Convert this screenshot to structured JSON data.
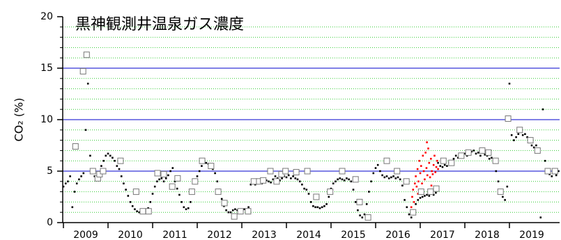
{
  "chart_data": {
    "type": "scatter",
    "title": "黒神観測井温泉ガス濃度",
    "y_label": "CO₂ (%)",
    "xlim": [
      2008.984,
      2020.125
    ],
    "xticks": [
      2009,
      2010,
      2011,
      2012,
      2013,
      2014,
      2015,
      2016,
      2017,
      2018,
      2019
    ],
    "ylim": [
      0,
      20
    ],
    "yticks": [
      0,
      5,
      10,
      15,
      20
    ],
    "grid": true,
    "grid_color": "#0000cc",
    "minor_yticks": [
      1,
      2,
      3,
      4,
      6,
      7,
      8,
      9,
      11,
      12,
      13,
      14,
      16,
      17,
      18,
      19
    ],
    "minor_grid_color": "#33cc33",
    "series": [
      {
        "color": "#000000",
        "marker": "dot",
        "x": [
          2009.0,
          2009.05,
          2009.1,
          2009.15,
          2009.2,
          2009.25,
          2009.3,
          2009.35,
          2009.4,
          2009.45,
          2009.5,
          2009.55,
          2009.6,
          2009.65,
          2009.7,
          2009.75,
          2009.8,
          2009.85,
          2009.9,
          2009.95,
          2010.0,
          2010.05,
          2010.1,
          2010.15,
          2010.2,
          2010.25,
          2010.3,
          2010.35,
          2010.4,
          2010.45,
          2010.5,
          2010.55,
          2010.6,
          2010.65,
          2010.7,
          2010.75,
          2010.8,
          2010.85,
          2010.9,
          2010.95,
          2011.0,
          2011.05,
          2011.1,
          2011.15,
          2011.2,
          2011.25,
          2011.3,
          2011.35,
          2011.4,
          2011.45,
          2011.5,
          2011.55,
          2011.6,
          2011.65,
          2011.7,
          2011.75,
          2011.8,
          2011.85,
          2011.9,
          2011.95,
          2012.0,
          2012.05,
          2012.1,
          2012.15,
          2012.2,
          2012.25,
          2012.3,
          2012.35,
          2012.4,
          2012.45,
          2012.5,
          2012.55,
          2012.6,
          2012.65,
          2012.7,
          2012.75,
          2012.8,
          2012.85,
          2012.9,
          2012.95,
          2013.0,
          2013.05,
          2013.1,
          2013.15,
          2013.2,
          2013.25,
          2013.3,
          2013.35,
          2013.4,
          2013.45,
          2013.5,
          2013.55,
          2013.6,
          2013.65,
          2013.7,
          2013.75,
          2013.8,
          2013.85,
          2013.9,
          2013.95,
          2014.0,
          2014.05,
          2014.1,
          2014.15,
          2014.2,
          2014.25,
          2014.3,
          2014.35,
          2014.4,
          2014.45,
          2014.5,
          2014.55,
          2014.6,
          2014.65,
          2014.7,
          2014.75,
          2014.8,
          2014.85,
          2014.9,
          2014.95,
          2015.0,
          2015.05,
          2015.1,
          2015.15,
          2015.2,
          2015.25,
          2015.3,
          2015.35,
          2015.4,
          2015.45,
          2015.5,
          2015.55,
          2015.6,
          2015.65,
          2015.7,
          2015.75,
          2015.8,
          2015.85,
          2015.9,
          2015.95,
          2016.0,
          2016.05,
          2016.1,
          2016.15,
          2016.2,
          2016.25,
          2016.3,
          2016.35,
          2016.4,
          2016.45,
          2016.5,
          2016.55,
          2016.6,
          2016.65,
          2016.7,
          2016.75,
          2016.8,
          2016.85,
          2016.9,
          2016.95,
          2017.0,
          2017.05,
          2017.1,
          2017.15,
          2017.2,
          2017.25,
          2017.3,
          2017.35,
          2017.4,
          2017.45,
          2017.5,
          2017.55,
          2017.6,
          2017.65,
          2017.7,
          2017.75,
          2017.8,
          2017.85,
          2017.9,
          2017.95,
          2018.0,
          2018.05,
          2018.1,
          2018.15,
          2018.2,
          2018.25,
          2018.3,
          2018.35,
          2018.4,
          2018.45,
          2018.5,
          2018.55,
          2018.6,
          2018.65,
          2018.7,
          2018.75,
          2018.8,
          2018.85,
          2018.9,
          2018.95,
          2019.0,
          2019.05,
          2019.1,
          2019.15,
          2019.2,
          2019.25,
          2019.3,
          2019.35,
          2019.4,
          2019.45,
          2019.5,
          2019.55,
          2019.6,
          2019.65,
          2019.7,
          2019.75,
          2019.8,
          2019.85,
          2019.9,
          2019.95,
          2020.0,
          2020.05,
          2020.1
        ],
        "values": [
          3.5,
          3.8,
          4.0,
          4.5,
          1.5,
          3.0,
          3.8,
          4.2,
          4.5,
          4.8,
          9.0,
          13.5,
          6.5,
          5.0,
          4.5,
          4.3,
          4.8,
          5.5,
          6.0,
          6.5,
          6.7,
          6.5,
          6.3,
          6.0,
          5.5,
          5.2,
          4.5,
          3.8,
          3.2,
          2.6,
          2.0,
          1.6,
          1.3,
          1.1,
          1.0,
          1.0,
          1.0,
          1.1,
          1.4,
          2.0,
          2.8,
          3.5,
          4.0,
          4.2,
          4.3,
          4.0,
          4.3,
          4.6,
          5.0,
          5.3,
          4.0,
          3.3,
          2.7,
          2.0,
          1.5,
          1.3,
          1.4,
          2.0,
          3.0,
          3.8,
          4.5,
          5.0,
          5.5,
          5.8,
          5.8,
          5.7,
          5.5,
          5.2,
          4.8,
          4.0,
          3.2,
          2.3,
          1.6,
          1.2,
          1.0,
          1.0,
          1.2,
          1.3,
          1.2,
          1.0,
          1.2,
          1.3,
          1.0,
          1.5,
          3.7,
          3.8,
          3.7,
          3.8,
          3.9,
          3.8,
          4.0,
          4.1,
          4.0,
          3.9,
          4.2,
          4.5,
          4.3,
          4.1,
          4.3,
          4.5,
          4.4,
          4.6,
          4.3,
          4.5,
          4.3,
          4.2,
          4.0,
          3.7,
          3.3,
          3.2,
          2.8,
          2.0,
          1.6,
          1.5,
          1.5,
          1.4,
          1.5,
          1.6,
          1.8,
          2.5,
          3.3,
          3.8,
          4.0,
          4.2,
          4.3,
          4.2,
          4.1,
          4.3,
          4.2,
          4.0,
          3.2,
          2.0,
          1.2,
          0.7,
          0.5,
          0.8,
          1.8,
          3.0,
          4.0,
          4.8,
          5.3,
          5.6,
          5.0,
          4.6,
          4.4,
          4.5,
          4.3,
          4.4,
          4.5,
          4.3,
          4.4,
          4.2,
          3.6,
          2.2,
          1.5,
          0.8,
          0.5,
          1.2,
          1.8,
          2.2,
          2.4,
          2.5,
          2.6,
          2.7,
          2.6,
          2.8,
          2.7,
          2.9,
          5.8,
          5.5,
          5.4,
          5.6,
          5.5,
          5.8,
          6.0,
          6.2,
          6.5,
          6.3,
          6.6,
          6.4,
          6.7,
          6.5,
          6.8,
          6.9,
          7.0,
          6.7,
          6.8,
          6.5,
          6.8,
          6.6,
          6.5,
          6.2,
          6.3,
          5.8,
          5.0,
          4.0,
          3.0,
          2.5,
          2.2,
          3.5,
          13.5,
          8.5,
          8.0,
          8.3,
          8.6,
          8.8,
          8.5,
          8.6,
          8.3,
          8.0,
          7.5,
          7.3,
          7.5,
          7.0,
          0.5,
          11.0,
          6.0,
          5.0,
          4.7,
          4.5,
          4.8,
          4.6,
          5.0
        ]
      },
      {
        "color": "#ff0000",
        "marker": "dot",
        "x": [
          2016.8,
          2016.82,
          2016.84,
          2016.85,
          2016.86,
          2016.88,
          2016.9,
          2016.92,
          2016.94,
          2016.95,
          2016.96,
          2016.98,
          2017.0,
          2017.02,
          2017.04,
          2017.05,
          2017.06,
          2017.08,
          2017.1,
          2017.12,
          2017.14,
          2017.15,
          2017.16,
          2017.18,
          2017.2,
          2017.22,
          2017.24,
          2017.25,
          2017.26,
          2017.28,
          2017.3,
          2017.32,
          2017.34,
          2017.36,
          2017.38,
          2017.4
        ],
        "values": [
          1.5,
          2.5,
          3.2,
          1.0,
          2.0,
          3.8,
          4.5,
          3.5,
          5.2,
          2.8,
          4.0,
          6.0,
          4.8,
          5.5,
          3.8,
          3.0,
          6.5,
          5.0,
          4.2,
          6.8,
          5.3,
          7.8,
          4.6,
          7.2,
          5.8,
          4.4,
          6.2,
          3.6,
          5.0,
          4.7,
          5.6,
          6.5,
          4.9,
          5.4,
          6.0,
          5.2
        ]
      },
      {
        "color": "#777777",
        "marker": "square",
        "x": [
          2009.27,
          2009.44,
          2009.52,
          2009.66,
          2009.77,
          2009.81,
          2009.89,
          2010.28,
          2010.63,
          2010.78,
          2010.91,
          2011.11,
          2011.25,
          2011.44,
          2011.56,
          2011.88,
          2011.95,
          2012.11,
          2012.31,
          2012.47,
          2012.61,
          2012.83,
          2012.97,
          2013.14,
          2013.27,
          2013.39,
          2013.48,
          2013.64,
          2013.78,
          2013.89,
          2013.98,
          2014.22,
          2014.47,
          2014.67,
          2014.98,
          2015.25,
          2015.55,
          2015.64,
          2015.83,
          2016.25,
          2016.48,
          2016.69,
          2016.84,
          2017.02,
          2017.23,
          2017.36,
          2017.52,
          2017.7,
          2017.92,
          2018.08,
          2018.39,
          2018.53,
          2018.69,
          2018.8,
          2018.97,
          2019.23,
          2019.47,
          2019.63,
          2019.86,
          2020.02
        ],
        "values": [
          7.4,
          14.7,
          16.3,
          5,
          4.3,
          4.7,
          5,
          6,
          3,
          1.1,
          1.1,
          4.8,
          4.7,
          3.5,
          4.3,
          3,
          4,
          6,
          5.5,
          3,
          1.9,
          0.6,
          1.1,
          1.1,
          4,
          4,
          4.1,
          5,
          4,
          4.7,
          5,
          4.9,
          5,
          2.5,
          3,
          5,
          4.2,
          2,
          0.5,
          6,
          5,
          4,
          1,
          3,
          3,
          3.3,
          6,
          5.8,
          6.5,
          6.8,
          7,
          6.8,
          6,
          3,
          10.1,
          9,
          8,
          7,
          5,
          5
        ]
      }
    ]
  }
}
